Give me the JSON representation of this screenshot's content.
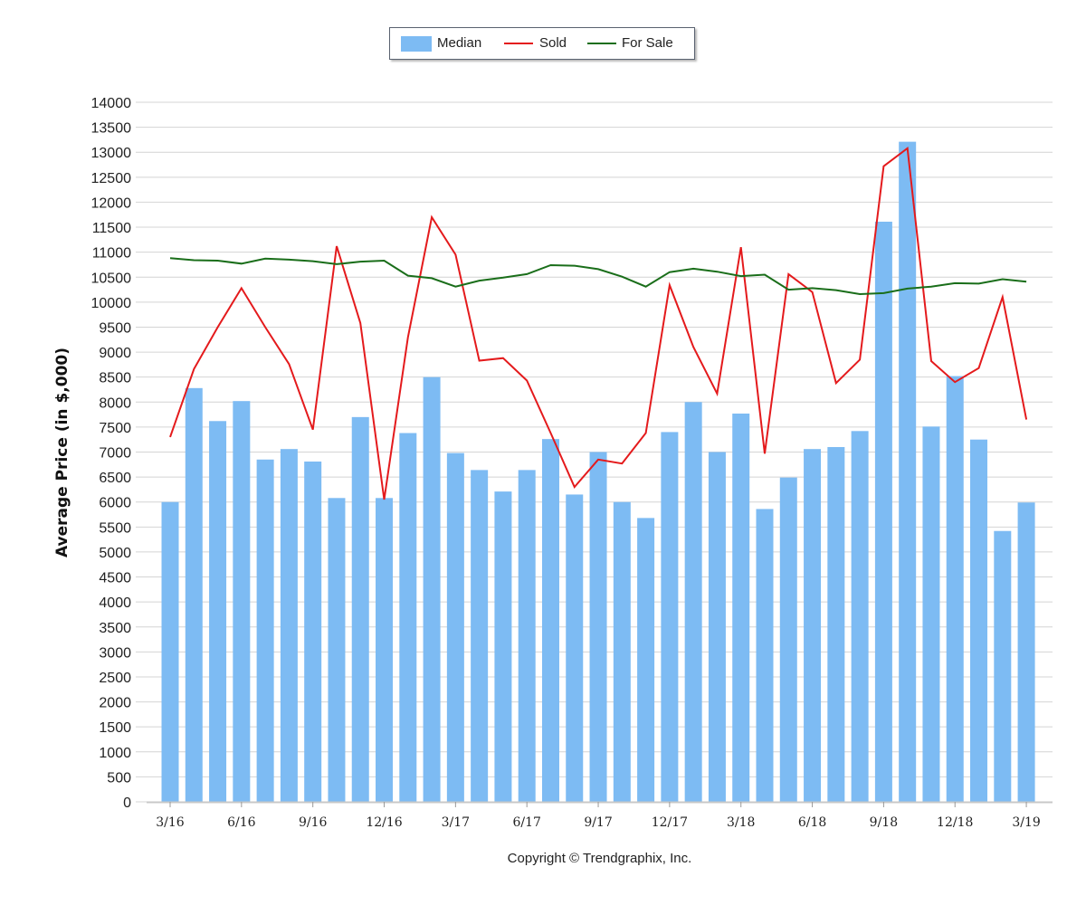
{
  "legend": {
    "median_label": "Median",
    "sold_label": "Sold",
    "forsale_label": "For Sale"
  },
  "copyright": "Copyright © Trendgraphix, Inc.",
  "chart_data": {
    "type": "bar",
    "title": "",
    "xlabel": "",
    "ylabel": "Average Price (in $,000)",
    "ylim": [
      0,
      14000
    ],
    "yticks": [
      0,
      500,
      1000,
      1500,
      2000,
      2500,
      3000,
      3500,
      4000,
      4500,
      5000,
      5500,
      6000,
      6500,
      7000,
      7500,
      8000,
      8500,
      9000,
      9500,
      10000,
      10500,
      11000,
      11500,
      12000,
      12500,
      13000,
      13500,
      14000
    ],
    "grid": true,
    "legend_position": "top-center",
    "categories": [
      "3/16",
      "4/16",
      "5/16",
      "6/16",
      "7/16",
      "8/16",
      "9/16",
      "10/16",
      "11/16",
      "12/16",
      "1/17",
      "2/17",
      "3/17",
      "4/17",
      "5/17",
      "6/17",
      "7/17",
      "8/17",
      "9/17",
      "10/17",
      "11/17",
      "12/17",
      "1/18",
      "2/18",
      "3/18",
      "4/18",
      "5/18",
      "6/18",
      "7/18",
      "8/18",
      "9/18",
      "10/18",
      "11/18",
      "12/18",
      "1/19",
      "2/19",
      "3/19"
    ],
    "tick_labels": [
      "3/16",
      "",
      "",
      "6/16",
      "",
      "",
      "9/16",
      "",
      "",
      "12/16",
      "",
      "",
      "3/17",
      "",
      "",
      "6/17",
      "",
      "",
      "9/17",
      "",
      "",
      "12/17",
      "",
      "",
      "3/18",
      "",
      "",
      "6/18",
      "",
      "",
      "9/18",
      "",
      "",
      "12/18",
      "",
      "",
      "3/19"
    ],
    "series": [
      {
        "name": "Median",
        "type": "bar",
        "color": "#7dbbf3",
        "values": [
          6000,
          8280,
          7620,
          8020,
          6850,
          7060,
          6810,
          6080,
          7700,
          6080,
          7380,
          8500,
          6980,
          6640,
          6210,
          6640,
          7260,
          6150,
          7000,
          6000,
          5680,
          7400,
          8000,
          7000,
          7770,
          5860,
          6490,
          7060,
          7100,
          7420,
          11610,
          13210,
          7510,
          8520,
          7250,
          5420,
          5990
        ]
      },
      {
        "name": "Sold",
        "type": "line",
        "color": "#e41a1c",
        "values": [
          7300,
          8660,
          9500,
          10280,
          9500,
          8760,
          7450,
          11120,
          9580,
          6050,
          9300,
          11700,
          10950,
          8830,
          8880,
          8430,
          7380,
          6300,
          6850,
          6770,
          7380,
          10340,
          9100,
          8170,
          11100,
          6970,
          10560,
          10200,
          8380,
          8850,
          12720,
          13080,
          8820,
          8400,
          8680,
          10100,
          7650
        ]
      },
      {
        "name": "For Sale",
        "type": "line",
        "color": "#1a6e1a",
        "values": [
          10880,
          10840,
          10830,
          10770,
          10870,
          10850,
          10820,
          10760,
          10810,
          10830,
          10530,
          10480,
          10310,
          10430,
          10490,
          10560,
          10740,
          10730,
          10660,
          10510,
          10310,
          10600,
          10670,
          10610,
          10520,
          10550,
          10250,
          10280,
          10240,
          10160,
          10180,
          10270,
          10310,
          10380,
          10370,
          10460,
          10410
        ]
      }
    ]
  }
}
